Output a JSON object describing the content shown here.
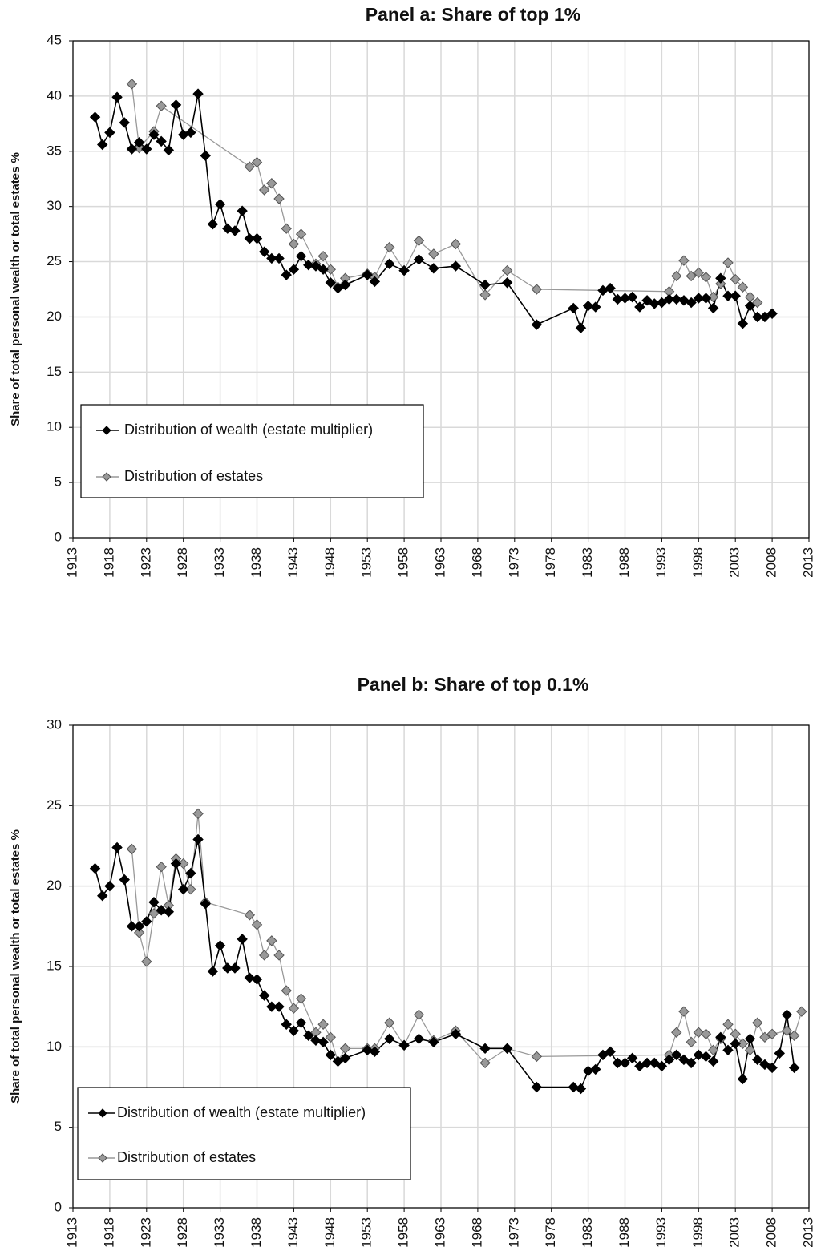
{
  "chart_data": [
    {
      "type": "line",
      "title": "Panel a: Share of top 1%",
      "ylabel": "Share of total personal wealth or total estates %",
      "xlim": [
        1913,
        2013
      ],
      "xticks": [
        1913,
        1918,
        1923,
        1928,
        1933,
        1938,
        1943,
        1948,
        1953,
        1958,
        1963,
        1968,
        1973,
        1978,
        1983,
        1988,
        1993,
        1998,
        2003,
        2008,
        2013
      ],
      "ylim": [
        0,
        45
      ],
      "yticks": [
        0,
        5,
        10,
        15,
        20,
        25,
        30,
        35,
        40,
        45
      ],
      "grid": true,
      "legend": "lower left",
      "series": [
        {
          "name": "Distribution of wealth (estate multiplier)",
          "color": "#000000",
          "x": [
            1916,
            1917,
            1918,
            1919,
            1920,
            1921,
            1922,
            1923,
            1924,
            1925,
            1926,
            1927,
            1928,
            1929,
            1930,
            1931,
            1932,
            1933,
            1934,
            1935,
            1936,
            1937,
            1938,
            1939,
            1940,
            1941,
            1942,
            1943,
            1944,
            1945,
            1946,
            1947,
            1948,
            1949,
            1950,
            1953,
            1954,
            1956,
            1958,
            1960,
            1962,
            1965,
            1969,
            1972,
            1976,
            1981,
            1982,
            1983,
            1984,
            1985,
            1986,
            1987,
            1988,
            1989,
            1990,
            1991,
            1992,
            1993,
            1994,
            1995,
            1996,
            1997,
            1998,
            1999,
            2000,
            2001,
            2002,
            2003,
            2004,
            2005,
            2006,
            2007,
            2008
          ],
          "values": [
            38.1,
            35.6,
            36.7,
            39.9,
            37.6,
            35.2,
            35.8,
            35.2,
            36.5,
            35.9,
            35.1,
            39.2,
            36.5,
            36.7,
            40.2,
            34.6,
            28.4,
            30.2,
            28.0,
            27.8,
            29.6,
            27.1,
            27.1,
            25.9,
            25.3,
            25.3,
            23.8,
            24.3,
            25.5,
            24.7,
            24.6,
            24.3,
            23.1,
            22.6,
            22.9,
            23.8,
            23.2,
            24.8,
            24.2,
            25.2,
            24.4,
            24.6,
            22.9,
            23.1,
            19.3,
            20.8,
            19.0,
            21.0,
            20.9,
            22.4,
            22.6,
            21.6,
            21.7,
            21.8,
            20.9,
            21.5,
            21.2,
            21.3,
            21.6,
            21.6,
            21.5,
            21.3,
            21.7,
            21.7,
            20.8,
            23.5,
            21.9,
            21.9,
            19.4,
            21.0,
            20.0,
            20.0,
            20.3
          ]
        },
        {
          "name": "Distribution of estates",
          "color": "#999999",
          "x": [
            1921,
            1922,
            1924,
            1925,
            1937,
            1938,
            1939,
            1940,
            1941,
            1942,
            1943,
            1944,
            1946,
            1947,
            1948,
            1949,
            1950,
            1953,
            1954,
            1956,
            1958,
            1960,
            1962,
            1965,
            1969,
            1972,
            1976,
            1994,
            1995,
            1996,
            1997,
            1998,
            1999,
            2000,
            2001,
            2002,
            2003,
            2004,
            2005,
            2006
          ],
          "values": [
            41.1,
            35.3,
            36.8,
            39.1,
            33.6,
            34.0,
            31.5,
            32.1,
            30.7,
            28.0,
            26.6,
            27.5,
            24.8,
            25.5,
            24.3,
            22.7,
            23.5,
            23.9,
            23.6,
            26.3,
            24.2,
            26.9,
            25.7,
            26.6,
            22.0,
            24.2,
            22.5,
            22.3,
            23.7,
            25.1,
            23.7,
            24.0,
            23.6,
            21.8,
            23.0,
            24.9,
            23.4,
            22.7,
            21.8,
            21.3
          ]
        }
      ]
    },
    {
      "type": "line",
      "title": "Panel b: Share of top 0.1%",
      "ylabel": "Share of total personal wealth or total estates %",
      "xlim": [
        1913,
        2013
      ],
      "xticks": [
        1913,
        1918,
        1923,
        1928,
        1933,
        1938,
        1943,
        1948,
        1953,
        1958,
        1963,
        1968,
        1973,
        1978,
        1983,
        1988,
        1993,
        1998,
        2003,
        2008,
        2013
      ],
      "ylim": [
        0,
        30
      ],
      "yticks": [
        0,
        5,
        10,
        15,
        20,
        25,
        30
      ],
      "grid": true,
      "legend": "lower left",
      "series": [
        {
          "name": "Distribution of wealth (estate multiplier)",
          "color": "#000000",
          "x": [
            1916,
            1917,
            1918,
            1919,
            1920,
            1921,
            1922,
            1923,
            1924,
            1925,
            1926,
            1927,
            1928,
            1929,
            1930,
            1931,
            1932,
            1933,
            1934,
            1935,
            1936,
            1937,
            1938,
            1939,
            1940,
            1941,
            1942,
            1943,
            1944,
            1945,
            1946,
            1947,
            1948,
            1949,
            1950,
            1953,
            1954,
            1956,
            1958,
            1960,
            1962,
            1965,
            1969,
            1972,
            1976,
            1981,
            1982,
            1983,
            1984,
            1985,
            1986,
            1987,
            1988,
            1989,
            1990,
            1991,
            1992,
            1993,
            1994,
            1995,
            1996,
            1997,
            1998,
            1999,
            2000,
            2001,
            2002,
            2003,
            2004,
            2005,
            2006,
            2007,
            2008,
            2009,
            2010,
            2011
          ],
          "values": [
            21.1,
            19.4,
            20.0,
            22.4,
            20.4,
            17.5,
            17.5,
            17.8,
            19.0,
            18.5,
            18.4,
            21.4,
            19.8,
            20.8,
            22.9,
            18.9,
            14.7,
            16.3,
            14.9,
            14.9,
            16.7,
            14.3,
            14.2,
            13.2,
            12.5,
            12.5,
            11.4,
            11.0,
            11.5,
            10.7,
            10.4,
            10.3,
            9.5,
            9.1,
            9.3,
            9.8,
            9.7,
            10.5,
            10.1,
            10.5,
            10.3,
            10.8,
            9.9,
            9.9,
            7.5,
            7.5,
            7.4,
            8.5,
            8.6,
            9.5,
            9.7,
            9.0,
            9.0,
            9.3,
            8.8,
            9.0,
            9.0,
            8.8,
            9.2,
            9.5,
            9.2,
            9.0,
            9.5,
            9.4,
            9.1,
            10.6,
            9.8,
            10.2,
            8.0,
            10.5,
            9.2,
            8.9,
            8.7,
            9.6,
            12.0,
            8.7
          ]
        },
        {
          "name": "Distribution of estates",
          "color": "#999999",
          "x": [
            1921,
            1922,
            1923,
            1924,
            1925,
            1926,
            1927,
            1928,
            1929,
            1930,
            1931,
            1937,
            1938,
            1939,
            1940,
            1941,
            1942,
            1943,
            1944,
            1946,
            1947,
            1948,
            1949,
            1950,
            1953,
            1954,
            1956,
            1958,
            1960,
            1962,
            1965,
            1969,
            1972,
            1976,
            1994,
            1995,
            1996,
            1997,
            1998,
            1999,
            2000,
            2001,
            2002,
            2003,
            2004,
            2005,
            2006,
            2007,
            2008,
            2010,
            2011,
            2012
          ],
          "values": [
            22.3,
            17.1,
            15.3,
            18.3,
            21.2,
            18.8,
            21.7,
            21.4,
            19.8,
            24.5,
            19.0,
            18.2,
            17.6,
            15.7,
            16.6,
            15.7,
            13.5,
            12.4,
            13.0,
            10.9,
            11.4,
            10.6,
            9.1,
            9.9,
            9.9,
            9.9,
            11.5,
            10.1,
            12.0,
            10.4,
            11.0,
            9.0,
            9.9,
            9.4,
            9.5,
            10.9,
            12.2,
            10.3,
            10.9,
            10.8,
            9.8,
            10.5,
            11.4,
            10.8,
            10.2,
            9.8,
            11.5,
            10.6,
            10.8,
            11.0,
            10.7,
            12.2
          ]
        }
      ]
    }
  ]
}
